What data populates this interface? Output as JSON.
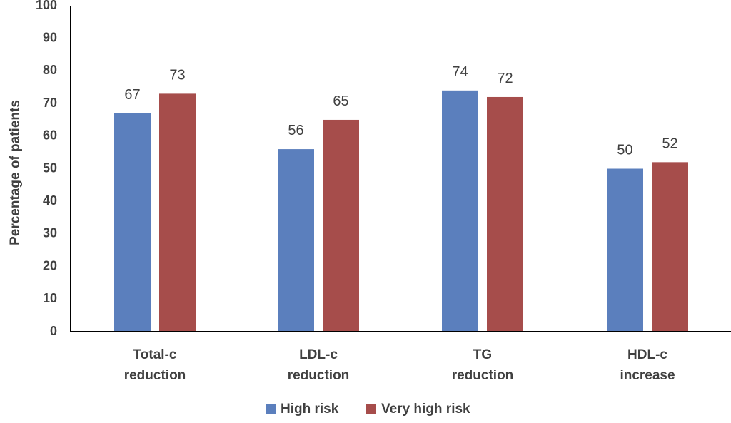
{
  "chart_data": {
    "type": "bar",
    "title": "",
    "xlabel": "",
    "ylabel": "Percentage of patients",
    "ylim": [
      0,
      100
    ],
    "yticks": [
      0,
      10,
      20,
      30,
      40,
      50,
      60,
      70,
      80,
      90,
      100
    ],
    "grid": false,
    "legend_position": "bottom",
    "categories": [
      [
        "Total-c",
        "reduction"
      ],
      [
        "LDL-c",
        "reduction"
      ],
      [
        "TG",
        "reduction"
      ],
      [
        "HDL-c",
        "increase"
      ]
    ],
    "series": [
      {
        "name": "High risk",
        "color": "#5b7fbd",
        "values": [
          67,
          56,
          74,
          50
        ]
      },
      {
        "name": "Very high risk",
        "color": "#a64d4b",
        "values": [
          73,
          65,
          72,
          52
        ]
      }
    ]
  }
}
